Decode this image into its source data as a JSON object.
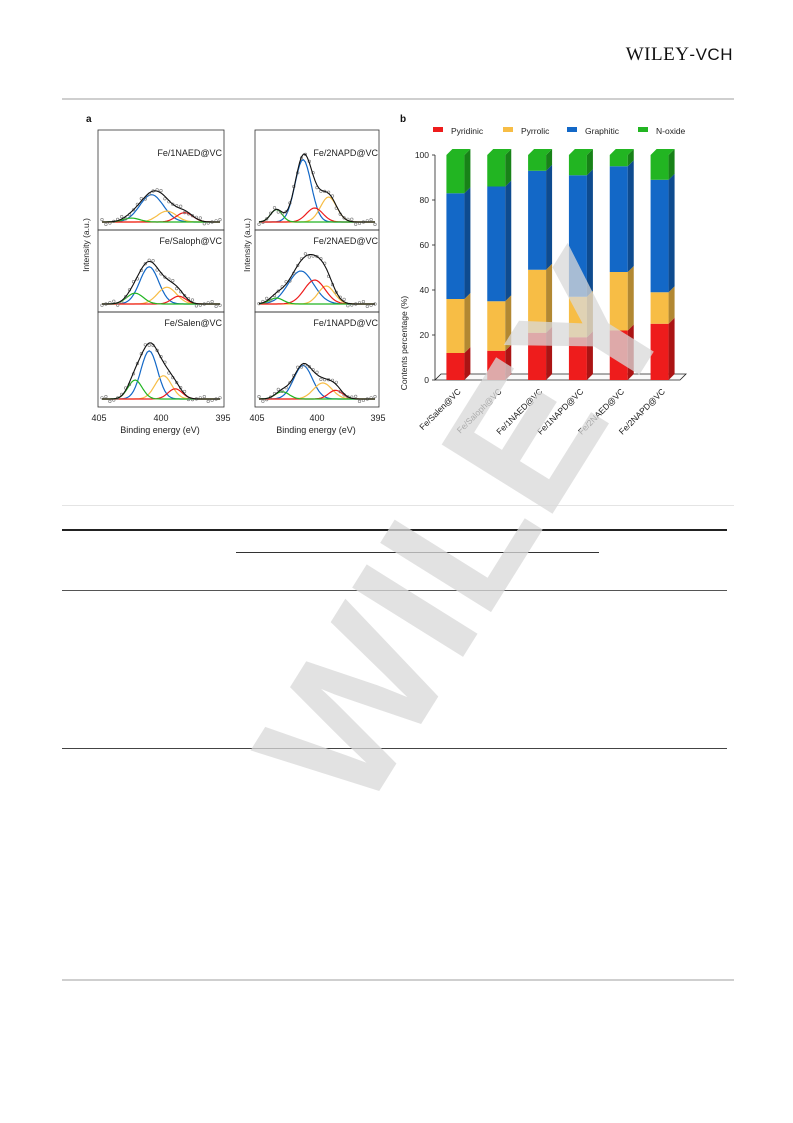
{
  "header": {
    "logo_main": "WILEY",
    "logo_sep": "-",
    "logo_sub": "VCH"
  },
  "figure": {
    "panel_a": {
      "letter": "a",
      "ylabel": "Intensity (a.u.)",
      "xlabel": "Binding energy (eV)",
      "x_ticks": [
        "405",
        "400",
        "395"
      ],
      "left_column": [
        "Fe/1NAED@VC",
        "Fe/Saloph@VC",
        "Fe/Salen@VC"
      ],
      "right_column": [
        "Fe/2NAPD@VC",
        "Fe/2NAED@VC",
        "Fe/1NAPD@VC"
      ]
    },
    "panel_b": {
      "letter": "b"
    }
  },
  "chart_data": {
    "type": "bar",
    "stacked": true,
    "categories": [
      "Fe/Salen@VC",
      "Fe/Saloph@VC",
      "Fe/1NAED@VC",
      "Fe/1NAPD@VC",
      "Fe/2NAED@VC",
      "Fe/2NAPD@VC"
    ],
    "series": [
      {
        "name": "Pyridinic",
        "color": "#ee1c1c",
        "values": [
          12,
          13,
          21,
          19,
          22,
          25
        ]
      },
      {
        "name": "Pyrrolic",
        "color": "#f7bd45",
        "values": [
          24,
          22,
          28,
          18,
          26,
          14
        ]
      },
      {
        "name": "Graphitic",
        "color": "#1368c7",
        "values": [
          47,
          51,
          44,
          54,
          47,
          50
        ]
      },
      {
        "name": "N-oxide",
        "color": "#22b522",
        "values": [
          17,
          14,
          7,
          9,
          5,
          11
        ]
      }
    ],
    "ylabel": "Contents percentage (%)",
    "xlabel": "",
    "ylim": [
      0,
      100
    ],
    "yticks": [
      "0",
      "20",
      "40",
      "60",
      "80",
      "100"
    ],
    "legend_position": "top"
  },
  "watermark": {
    "text": "WILEY"
  }
}
